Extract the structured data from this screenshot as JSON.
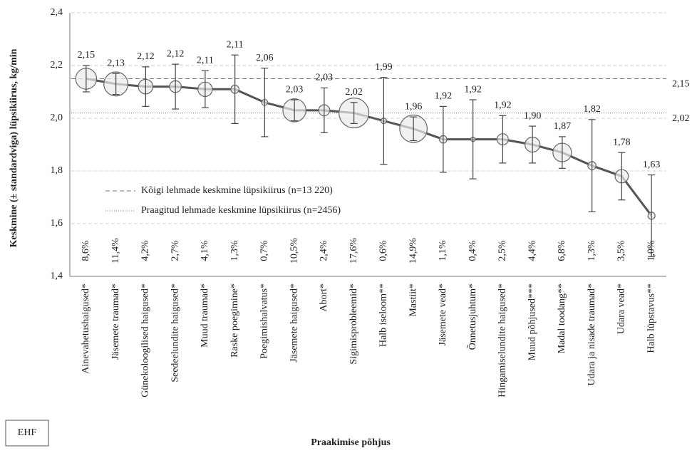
{
  "chart_data": {
    "type": "line",
    "y_axis_label": "Keskmine (± standardviga)  lüpsikiirus, kg/min",
    "x_axis_label": "Praakimise põhjus",
    "badge": "EHF",
    "categories": [
      "Ainevahetushaigused*",
      "Jäsemete traumad*",
      "Günekoloogilised haigused*",
      "Seedeelundite haigused*",
      "Muud traumad*",
      "Raske poegimine*",
      "Poegimishalvatus*",
      "Jäsemete haigused*",
      "Abort*",
      "Sigimisprobleemid*",
      "Halb iseloom**",
      "Mastiit*",
      "Jäsemete vead*",
      "Õnnetusjuhtum*",
      "Hingamiselundite haigused*",
      "Muud põhjused***",
      "Madal toodang**",
      "Udara ja nisade traumad*",
      "Udara vead*",
      "Halb lüpstavus**"
    ],
    "values": [
      2.15,
      2.13,
      2.12,
      2.12,
      2.11,
      2.11,
      2.06,
      2.03,
      2.03,
      2.02,
      1.99,
      1.96,
      1.92,
      1.92,
      1.92,
      1.9,
      1.87,
      1.82,
      1.78,
      1.63
    ],
    "value_labels": [
      "2,15",
      "2,13",
      "2,12",
      "2,12",
      "2,11",
      "2,11",
      "2,06",
      "2,03",
      "2,03",
      "2,02",
      "1,99",
      "1,96",
      "1,92",
      "1,92",
      "1,92",
      "1,90",
      "1,87",
      "1,82",
      "1,78",
      "1,63"
    ],
    "errors": [
      0.05,
      0.04,
      0.075,
      0.085,
      0.07,
      0.13,
      0.13,
      0.04,
      0.085,
      0.04,
      0.165,
      0.045,
      0.125,
      0.15,
      0.09,
      0.07,
      0.06,
      0.175,
      0.09,
      0.155
    ],
    "shares": [
      8.6,
      11.4,
      4.2,
      2.7,
      4.1,
      1.3,
      0.7,
      10.5,
      2.4,
      17.6,
      0.6,
      14.9,
      1.1,
      0.4,
      2.5,
      4.4,
      6.8,
      1.3,
      3.5,
      1.0
    ],
    "share_labels": [
      "8,6%",
      "11,4%",
      "4,2%",
      "2,7%",
      "4,1%",
      "1,3%",
      "0,7%",
      "10,5%",
      "2,4%",
      "17,6%",
      "0,6%",
      "14,9%",
      "1,1%",
      "0,4%",
      "2,5%",
      "4,4%",
      "6,8%",
      "1,3%",
      "3,5%",
      "1,0%"
    ],
    "color": "#555555",
    "reference_lines": [
      {
        "name": "Kõigi lehmade keskmine lüpsikiirus (n=13 220)",
        "value": 2.15,
        "label": "2,15",
        "style": "dashed"
      },
      {
        "name": "Praagitud lehmade keskmine lüpsikiirus (n=2456)",
        "value": 2.02,
        "label": "2,02",
        "style": "dotted"
      }
    ],
    "ylim": [
      1.4,
      2.4
    ],
    "yticks": [
      {
        "value": 1.4,
        "label": "1,4"
      },
      {
        "value": 1.6,
        "label": "1,6"
      },
      {
        "value": 1.8,
        "label": "1,8"
      },
      {
        "value": 2.0,
        "label": "2,0"
      },
      {
        "value": 2.2,
        "label": "2,2"
      },
      {
        "value": 2.4,
        "label": "2,4"
      }
    ],
    "grid": true
  }
}
